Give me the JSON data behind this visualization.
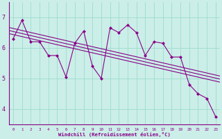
{
  "xlabel": "Windchill (Refroidissement éolien,°C)",
  "background_color": "#cceee8",
  "line_color": "#880088",
  "grid_color": "#99ddcc",
  "x_values": [
    0,
    1,
    2,
    3,
    4,
    5,
    6,
    7,
    8,
    9,
    10,
    11,
    12,
    13,
    14,
    15,
    16,
    17,
    18,
    19,
    20,
    21,
    22,
    23
  ],
  "y_main": [
    6.3,
    6.9,
    6.2,
    6.2,
    5.75,
    5.75,
    5.05,
    6.15,
    6.55,
    5.4,
    5.0,
    6.65,
    6.5,
    6.75,
    6.5,
    5.75,
    6.2,
    6.15,
    5.7,
    5.7,
    4.8,
    4.5,
    4.35,
    3.75
  ],
  "ylim": [
    3.5,
    7.5
  ],
  "xlim": [
    -0.5,
    23.5
  ],
  "yticks": [
    4,
    5,
    6,
    7
  ],
  "xticks": [
    0,
    1,
    2,
    3,
    4,
    5,
    6,
    7,
    8,
    9,
    10,
    11,
    12,
    13,
    14,
    15,
    16,
    17,
    18,
    19,
    20,
    21,
    22,
    23
  ],
  "trend_offsets": [
    0.0,
    0.1,
    -0.1
  ],
  "figsize": [
    3.2,
    2.0
  ],
  "dpi": 100
}
